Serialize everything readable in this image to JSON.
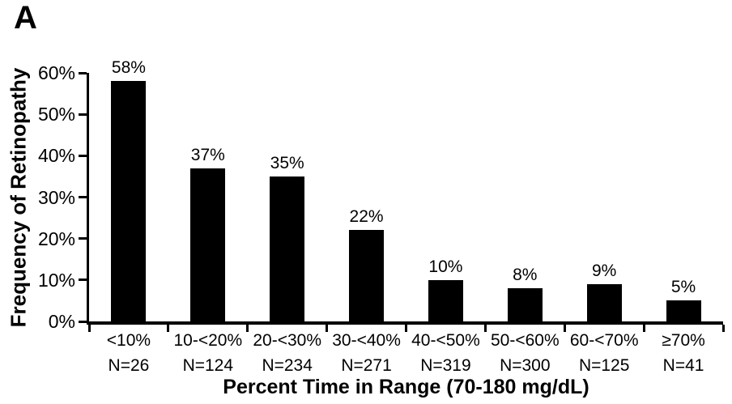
{
  "panel_label": "A",
  "colors": {
    "bar": "#000000",
    "axis": "#000000",
    "background": "#ffffff",
    "text": "#000000"
  },
  "chart_data": {
    "type": "bar",
    "title": "",
    "xlabel": "Percent Time in Range (70-180 mg/dL)",
    "ylabel": "Frequency of Retinopathy",
    "categories": [
      "<10%",
      "10-<20%",
      "20-<30%",
      "30-<40%",
      "40-<50%",
      "50-<60%",
      "60-<70%",
      "≥70%"
    ],
    "n_labels": [
      "N=26",
      "N=124",
      "N=234",
      "N=271",
      "N=319",
      "N=300",
      "N=125",
      "N=41"
    ],
    "values": [
      58,
      37,
      35,
      22,
      10,
      8,
      9,
      5
    ],
    "value_labels": [
      "58%",
      "37%",
      "35%",
      "22%",
      "10%",
      "8%",
      "9%",
      "5%"
    ],
    "ylim": [
      0,
      60
    ],
    "ytick_values": [
      0,
      10,
      20,
      30,
      40,
      50,
      60
    ],
    "ytick_labels": [
      "0%",
      "10%",
      "20%",
      "30%",
      "40%",
      "50%",
      "60%"
    ],
    "grid": false,
    "legend": "none",
    "bar_color": "#000000"
  }
}
